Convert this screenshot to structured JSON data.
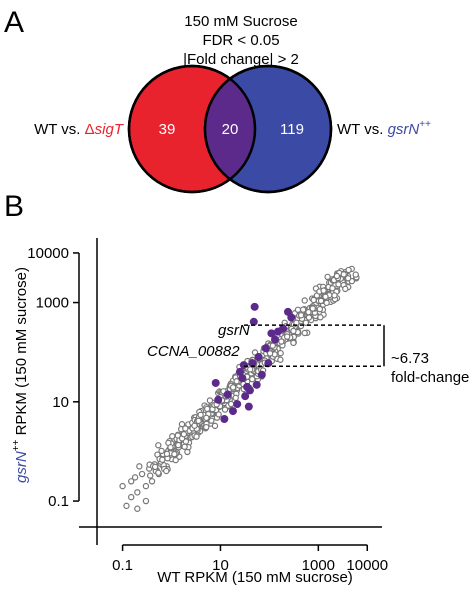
{
  "panel_a": {
    "letter": "A",
    "header": [
      "150 mM Sucrose",
      "FDR < 0.05",
      "|Fold change| > 2"
    ],
    "left": {
      "prefix": "WT vs. ",
      "label_delta": "Δ",
      "label_name": "sigT",
      "color": "#e8232d",
      "count": "39"
    },
    "overlap": {
      "count": "20",
      "color": "#5b2a8a"
    },
    "right": {
      "prefix": "WT vs. ",
      "label_name": "gsrN",
      "label_sup": "++",
      "color": "#3b4aa5",
      "count": "119"
    }
  },
  "panel_b": {
    "letter": "B",
    "annotations": {
      "gene1": "gsrN",
      "gene2": "CCNA_00882",
      "fold_change_value": "~6.73",
      "fold_change_label": "fold-change"
    }
  },
  "chart_data": {
    "type": "scatter",
    "xlabel": "WT RPKM (150 mM sucrose)",
    "ylabel_gene": "gsrN",
    "ylabel_sup": "++",
    "ylabel_rest": " RPKM (150 mM sucrose)",
    "ylabel_gene_color": "#3b4aa5",
    "x_scale": "log",
    "y_scale": "log",
    "xlim": [
      0.03,
      20000
    ],
    "ylim": [
      0.03,
      20000
    ],
    "x_ticks": [
      0.1,
      10,
      1000,
      10000
    ],
    "x_tick_labels": [
      "0.1",
      "10",
      "1000",
      "10000"
    ],
    "y_ticks": [
      0.1,
      10,
      1000,
      10000
    ],
    "y_tick_labels": [
      "0.1",
      "10",
      "1000",
      "10000"
    ],
    "grid": false,
    "series": [
      {
        "name": "",
        "style": "open-circle",
        "color": "#777777",
        "note": "all genes; dense band along y ≈ x (values approximated)",
        "points": [
          [
            0.5,
            0.4
          ],
          [
            0.6,
            0.7
          ],
          [
            0.7,
            0.9
          ],
          [
            0.8,
            0.5
          ],
          [
            0.9,
            1.1
          ],
          [
            1.0,
            0.9
          ],
          [
            1.1,
            1.3
          ],
          [
            1.2,
            1.0
          ],
          [
            1.4,
            1.6
          ],
          [
            1.6,
            1.3
          ],
          [
            1.8,
            2.0
          ],
          [
            2.0,
            1.7
          ],
          [
            2.3,
            2.6
          ],
          [
            2.6,
            2.1
          ],
          [
            3.0,
            3.3
          ],
          [
            3.4,
            2.8
          ],
          [
            3.8,
            4.2
          ],
          [
            4.3,
            3.6
          ],
          [
            5.0,
            5.4
          ],
          [
            5.6,
            4.5
          ],
          [
            6.4,
            7.0
          ],
          [
            7.2,
            6.0
          ],
          [
            8.2,
            9.0
          ],
          [
            9.3,
            7.8
          ],
          [
            10.5,
            11.5
          ],
          [
            12,
            10
          ],
          [
            13.5,
            15
          ],
          [
            15,
            12.5
          ],
          [
            17,
            19
          ],
          [
            19,
            16
          ],
          [
            22,
            24
          ],
          [
            25,
            21
          ],
          [
            28,
            31
          ],
          [
            32,
            27
          ],
          [
            36,
            40
          ],
          [
            41,
            35
          ],
          [
            47,
            52
          ],
          [
            53,
            45
          ],
          [
            60,
            66
          ],
          [
            68,
            58
          ],
          [
            77,
            85
          ],
          [
            88,
            75
          ],
          [
            100,
            110
          ],
          [
            113,
            96
          ],
          [
            128,
            141
          ],
          [
            146,
            124
          ],
          [
            166,
            182
          ],
          [
            189,
            160
          ],
          [
            214,
            235
          ],
          [
            243,
            207
          ],
          [
            276,
            303
          ],
          [
            314,
            267
          ],
          [
            357,
            392
          ],
          [
            405,
            345
          ],
          [
            460,
            505
          ],
          [
            523,
            445
          ],
          [
            594,
            653
          ],
          [
            675,
            574
          ],
          [
            767,
            843
          ],
          [
            871,
            741
          ],
          [
            990,
            1090
          ],
          [
            1125,
            957
          ],
          [
            1278,
            1406
          ],
          [
            1452,
            1235
          ],
          [
            1650,
            1815
          ],
          [
            1875,
            1594
          ],
          [
            2130,
            2340
          ],
          [
            2420,
            2060
          ],
          [
            2750,
            3020
          ],
          [
            3125,
            2660
          ],
          [
            3550,
            3900
          ],
          [
            4035,
            3430
          ]
        ],
        "outliers": [
          [
            0.1,
            0.2
          ],
          [
            0.15,
            0.12
          ],
          [
            0.18,
            0.3
          ],
          [
            0.2,
            0.15
          ],
          [
            0.25,
            0.35
          ],
          [
            0.3,
            0.2
          ],
          [
            0.35,
            0.45
          ],
          [
            0.4,
            0.25
          ],
          [
            0.45,
            0.55
          ],
          [
            0.55,
            0.35
          ],
          [
            0.65,
            0.8
          ],
          [
            0.75,
            0.45
          ],
          [
            0.95,
            1.5
          ],
          [
            1.3,
            0.8
          ],
          [
            2.2,
            3.5
          ],
          [
            3.2,
            2.0
          ],
          [
            4.0,
            6.5
          ],
          [
            6.0,
            3.8
          ],
          [
            9.0,
            15
          ],
          [
            14,
            8
          ],
          [
            20,
            32
          ],
          [
            30,
            18
          ],
          [
            45,
            70
          ],
          [
            65,
            40
          ],
          [
            95,
            150
          ],
          [
            140,
            85
          ],
          [
            0.12,
            0.08
          ],
          [
            0.2,
            0.07
          ],
          [
            0.3,
            0.1
          ],
          [
            0.22,
            0.5
          ],
          [
            0.15,
            0.25
          ]
        ]
      },
      {
        "name": "",
        "style": "filled-circle",
        "color": "#5b2a8a",
        "points": [
          [
            50,
            820
          ],
          [
            48,
            410
          ],
          [
            8,
            24
          ],
          [
            9,
            11
          ],
          [
            12,
            4.5
          ],
          [
            14,
            14
          ],
          [
            18,
            6.5
          ],
          [
            22,
            9
          ],
          [
            25,
            40
          ],
          [
            28,
            30
          ],
          [
            30,
            55
          ],
          [
            32,
            13
          ],
          [
            35,
            20
          ],
          [
            38,
            8
          ],
          [
            40,
            17
          ],
          [
            45,
            60
          ],
          [
            55,
            22
          ],
          [
            60,
            80
          ],
          [
            70,
            35
          ],
          [
            85,
            120
          ],
          [
            95,
            60
          ],
          [
            110,
            240
          ],
          [
            130,
            180
          ],
          [
            150,
            260
          ],
          [
            190,
            300
          ],
          [
            240,
            650
          ],
          [
            280,
            500
          ]
        ]
      }
    ],
    "fold_change_bracket": {
      "y_high": 350,
      "y_low": 52
    }
  }
}
